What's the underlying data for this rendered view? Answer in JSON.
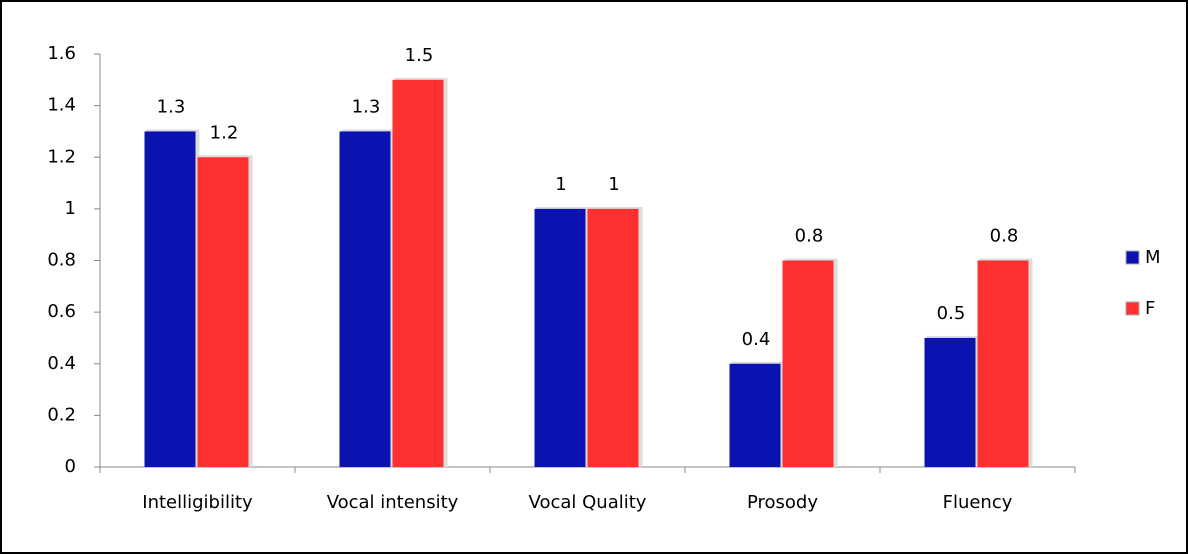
{
  "chart_data": {
    "type": "bar",
    "categories": [
      "Intelligibility",
      "Vocal intensity",
      "Vocal Quality",
      "Prosody",
      "Fluency"
    ],
    "series": [
      {
        "name": "M",
        "color": "#0a12b0",
        "values": [
          1.3,
          1.3,
          1,
          0.4,
          0.5
        ]
      },
      {
        "name": "F",
        "color": "#ff3030",
        "values": [
          1.2,
          1.5,
          1,
          0.8,
          0.8
        ]
      }
    ],
    "ylim": [
      0,
      1.6
    ],
    "yticks": [
      0,
      0.2,
      0.4,
      0.6,
      0.8,
      1,
      1.2,
      1.4,
      1.6
    ],
    "grid": false,
    "legend": "right",
    "data_labels": true
  }
}
